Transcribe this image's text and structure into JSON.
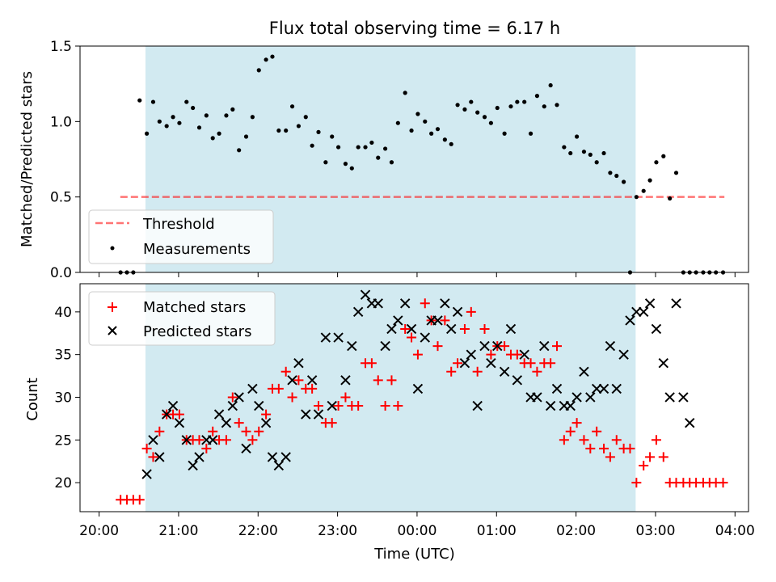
{
  "title": "Flux total observing time = 6.17 h",
  "colors": {
    "shade": "#add8e6",
    "threshold": "#ff0000",
    "matched": "#ff0000",
    "predicted": "#000000",
    "measurement": "#000000"
  },
  "chart_data": [
    {
      "type": "scatter",
      "ylabel": "Matched/Predicted stars",
      "ylim": [
        0,
        1.5
      ],
      "yticks": [
        "0.0",
        "0.5",
        "1.0",
        "1.5"
      ],
      "xlim": [
        -0.24,
        8.17
      ],
      "xunit": "hours after 20:00 UTC",
      "shaded_span": [
        "20:35",
        "02:45"
      ],
      "legend": {
        "position": "bottom-left",
        "entries": [
          "Threshold",
          "Measurements"
        ]
      },
      "threshold": {
        "name": "Threshold",
        "value": 0.5,
        "x_range": [
          "20:16",
          "03:52"
        ]
      },
      "series": [
        {
          "name": "Measurements",
          "marker": "dot",
          "x": [
            0.27,
            0.35,
            0.43,
            0.51,
            0.6,
            0.68,
            0.76,
            0.85,
            0.93,
            1.01,
            1.1,
            1.18,
            1.26,
            1.35,
            1.43,
            1.51,
            1.6,
            1.68,
            1.76,
            1.85,
            1.93,
            2.01,
            2.1,
            2.18,
            2.26,
            2.35,
            2.43,
            2.51,
            2.6,
            2.68,
            2.76,
            2.85,
            2.93,
            3.01,
            3.1,
            3.18,
            3.26,
            3.35,
            3.43,
            3.51,
            3.6,
            3.68,
            3.76,
            3.85,
            3.93,
            4.01,
            4.1,
            4.18,
            4.26,
            4.35,
            4.43,
            4.51,
            4.6,
            4.68,
            4.76,
            4.85,
            4.93,
            5.01,
            5.1,
            5.18,
            5.26,
            5.35,
            5.43,
            5.51,
            5.6,
            5.68,
            5.76,
            5.85,
            5.93,
            6.01,
            6.1,
            6.18,
            6.26,
            6.35,
            6.43,
            6.51,
            6.6,
            6.68,
            6.76,
            6.85,
            6.93,
            7.01,
            7.1,
            7.18,
            7.26,
            7.35,
            7.43,
            7.51,
            7.6,
            7.68,
            7.76,
            7.85
          ],
          "y": [
            0.0,
            0.0,
            0.0,
            1.14,
            0.92,
            1.13,
            1.0,
            0.97,
            1.03,
            0.99,
            1.13,
            1.09,
            0.96,
            1.04,
            0.89,
            0.92,
            1.04,
            1.08,
            0.81,
            0.9,
            1.03,
            1.34,
            1.41,
            1.43,
            0.94,
            0.94,
            1.1,
            0.97,
            1.03,
            0.84,
            0.93,
            0.73,
            0.9,
            0.83,
            0.72,
            0.69,
            0.83,
            0.83,
            0.86,
            0.76,
            0.82,
            0.73,
            0.99,
            1.19,
            0.94,
            1.05,
            1.0,
            0.92,
            0.95,
            0.88,
            0.85,
            1.11,
            1.08,
            1.13,
            1.06,
            1.03,
            0.99,
            1.09,
            0.92,
            1.1,
            1.13,
            1.13,
            0.92,
            1.17,
            1.1,
            1.24,
            1.11,
            0.83,
            0.79,
            0.9,
            0.8,
            0.78,
            0.73,
            0.79,
            0.66,
            0.64,
            0.6,
            0.0,
            0.5,
            0.54,
            0.61,
            0.73,
            0.77,
            0.49,
            0.66,
            0.0,
            0.0,
            0.0,
            0.0,
            0.0,
            0.0,
            0.0
          ]
        }
      ]
    },
    {
      "type": "scatter",
      "xlabel": "Time (UTC)",
      "ylabel": "Count",
      "ylim": [
        16.6,
        43.3
      ],
      "yticks": [
        "20",
        "25",
        "30",
        "35",
        "40"
      ],
      "xticks": [
        "20:00",
        "21:00",
        "22:00",
        "23:00",
        "00:00",
        "01:00",
        "02:00",
        "03:00",
        "04:00"
      ],
      "legend": {
        "position": "top-left",
        "entries": [
          "Matched stars",
          "Predicted stars"
        ]
      },
      "series": [
        {
          "name": "Matched stars",
          "marker": "plus",
          "x": [
            0.27,
            0.35,
            0.43,
            0.51,
            0.6,
            0.68,
            0.76,
            0.85,
            0.93,
            1.01,
            1.1,
            1.18,
            1.26,
            1.35,
            1.43,
            1.51,
            1.6,
            1.68,
            1.76,
            1.85,
            1.93,
            2.01,
            2.1,
            2.18,
            2.26,
            2.35,
            2.43,
            2.51,
            2.6,
            2.68,
            2.76,
            2.85,
            2.93,
            3.01,
            3.1,
            3.18,
            3.26,
            3.35,
            3.43,
            3.51,
            3.6,
            3.68,
            3.76,
            3.85,
            3.93,
            4.01,
            4.1,
            4.18,
            4.26,
            4.35,
            4.43,
            4.51,
            4.6,
            4.68,
            4.76,
            4.85,
            4.93,
            5.01,
            5.1,
            5.18,
            5.26,
            5.35,
            5.43,
            5.51,
            5.6,
            5.68,
            5.76,
            5.85,
            5.93,
            6.01,
            6.1,
            6.18,
            6.26,
            6.35,
            6.43,
            6.51,
            6.6,
            6.68,
            6.76,
            6.85,
            6.93,
            7.01,
            7.1,
            7.18,
            7.26,
            7.35,
            7.43,
            7.51,
            7.6,
            7.68,
            7.76,
            7.85
          ],
          "y": [
            18,
            18,
            18,
            18,
            24,
            23,
            26,
            28,
            28,
            28,
            25,
            25,
            25,
            24,
            26,
            25,
            25,
            30,
            27,
            26,
            25,
            26,
            28,
            31,
            31,
            33,
            30,
            32,
            31,
            31,
            29,
            27,
            27,
            29,
            30,
            29,
            29,
            34,
            34,
            32,
            29,
            32,
            29,
            38,
            37,
            35,
            41,
            39,
            36,
            39,
            33,
            34,
            38,
            40,
            33,
            38,
            35,
            36,
            36,
            35,
            35,
            34,
            34,
            33,
            34,
            34,
            36,
            25,
            26,
            27,
            25,
            24,
            26,
            24,
            23,
            25,
            24,
            24,
            20,
            22,
            23,
            25,
            23,
            20,
            20,
            20,
            20,
            20,
            20,
            20,
            20,
            20
          ]
        },
        {
          "name": "Predicted stars",
          "marker": "x",
          "x": [
            0.6,
            0.68,
            0.76,
            0.85,
            0.93,
            1.01,
            1.1,
            1.18,
            1.26,
            1.35,
            1.43,
            1.51,
            1.6,
            1.68,
            1.76,
            1.85,
            1.93,
            2.01,
            2.1,
            2.18,
            2.26,
            2.35,
            2.43,
            2.51,
            2.6,
            2.68,
            2.76,
            2.85,
            2.93,
            3.01,
            3.1,
            3.18,
            3.26,
            3.35,
            3.43,
            3.51,
            3.6,
            3.68,
            3.76,
            3.85,
            3.93,
            4.01,
            4.1,
            4.18,
            4.26,
            4.35,
            4.43,
            4.51,
            4.6,
            4.68,
            4.76,
            4.85,
            4.93,
            5.01,
            5.1,
            5.18,
            5.26,
            5.35,
            5.43,
            5.51,
            5.6,
            5.68,
            5.76,
            5.85,
            5.93,
            6.01,
            6.1,
            6.18,
            6.26,
            6.35,
            6.43,
            6.51,
            6.6,
            6.68,
            6.76,
            6.85,
            6.93,
            7.01,
            7.1,
            7.18,
            7.26,
            7.35,
            7.43
          ],
          "y": [
            21,
            25,
            23,
            28,
            29,
            27,
            25,
            22,
            23,
            25,
            25,
            28,
            27,
            29,
            30,
            24,
            31,
            29,
            27,
            23,
            22,
            23,
            32,
            34,
            28,
            32,
            28,
            37,
            29,
            37,
            32,
            36,
            40,
            42,
            41,
            41,
            36,
            38,
            39,
            41,
            38,
            31,
            37,
            39,
            39,
            41,
            38,
            40,
            34,
            35,
            29,
            36,
            34,
            36,
            33,
            38,
            32,
            35,
            30,
            30,
            36,
            29,
            31,
            29,
            29,
            30,
            33,
            30,
            31,
            31,
            36,
            31,
            35,
            39,
            40,
            40,
            41,
            38,
            34,
            30,
            41,
            30,
            27
          ]
        }
      ]
    }
  ]
}
